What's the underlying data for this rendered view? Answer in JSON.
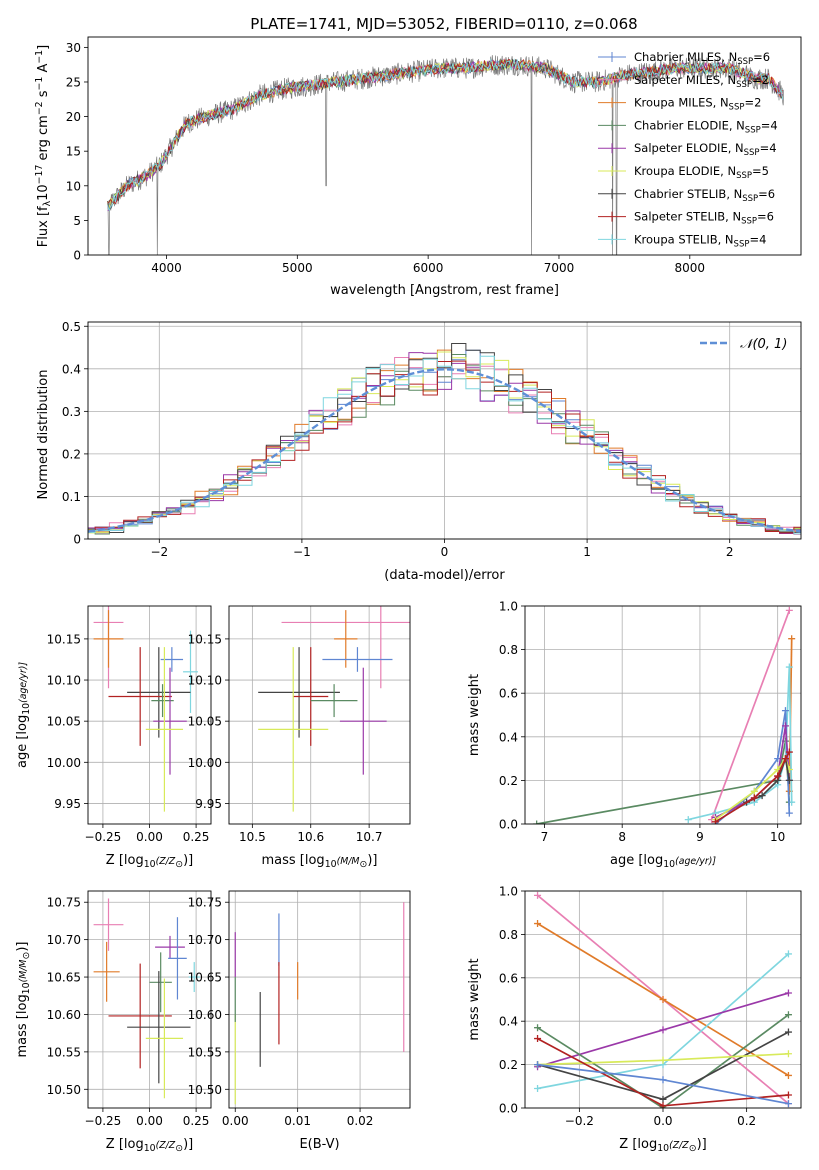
{
  "figure_title": "PLATE=1741, MJD=53052, FIBERID=0110, z=0.068",
  "colors": {
    "Chabrier MILES": "#5f86d2",
    "Salpeter MILES": "#e87fb3",
    "Kroupa MILES": "#e07b2a",
    "Chabrier ELODIE": "#5a8a62",
    "Salpeter ELODIE": "#9a38a8",
    "Kroupa ELODIE": "#d8ea5a",
    "Chabrier STELIB": "#444444",
    "Salpeter STELIB": "#b22222",
    "Kroupa STELIB": "#7fd6df",
    "gaussian": "#5f8fd6",
    "grid": "#b0b0b0"
  },
  "chart_data": [
    {
      "id": "spectrum",
      "type": "line",
      "title": "PLATE=1741, MJD=53052, FIBERID=0110, z=0.068",
      "xlabel": "wavelength [Angstrom, rest frame]",
      "ylabel_parts": [
        "Flux [f",
        "λ",
        "10",
        "−17",
        " erg cm",
        "−2",
        " s",
        "−1",
        " A",
        "−1",
        "]"
      ],
      "xlim": [
        3400,
        8850
      ],
      "ylim": [
        0,
        31.5
      ],
      "xticks": [
        4000,
        5000,
        6000,
        7000,
        8000
      ],
      "yticks": [
        0,
        5,
        10,
        15,
        20,
        25,
        30
      ],
      "grid": false,
      "legend_position": "right",
      "legend": [
        {
          "model": "Chabrier MILES",
          "nssp": "6"
        },
        {
          "model": "Salpeter MILES",
          "nssp": "2"
        },
        {
          "model": "Kroupa MILES",
          "nssp": "2"
        },
        {
          "model": "Chabrier ELODIE",
          "nssp": "4"
        },
        {
          "model": "Salpeter ELODIE",
          "nssp": "4"
        },
        {
          "model": "Kroupa ELODIE",
          "nssp": "5"
        },
        {
          "model": "Chabrier STELIB",
          "nssp": "6"
        },
        {
          "model": "Salpeter STELIB",
          "nssp": "6"
        },
        {
          "model": "Kroupa STELIB",
          "nssp": "4"
        }
      ],
      "continuum": {
        "x": [
          3550,
          3700,
          3850,
          3950,
          4050,
          4150,
          4300,
          4500,
          4700,
          4900,
          5100,
          5300,
          5500,
          5700,
          5900,
          6100,
          6300,
          6500,
          6700,
          6900,
          7100,
          7300,
          7500,
          7700,
          7900,
          8100,
          8300,
          8500,
          8600,
          8720
        ],
        "y": [
          7,
          10,
          11.5,
          13,
          16,
          19,
          20,
          21,
          23,
          24,
          24.5,
          25,
          25.5,
          26,
          26.5,
          27,
          27,
          27.5,
          27.5,
          27,
          25,
          25,
          26,
          26.5,
          27,
          27,
          27,
          25.5,
          25.5,
          23
        ]
      },
      "absorption_lines": [
        {
          "x": 3560,
          "y": 0
        },
        {
          "x": 3930,
          "y": 0
        },
        {
          "x": 5220,
          "y": 10
        },
        {
          "x": 6790,
          "y": 0
        },
        {
          "x": 7410,
          "y": 0
        },
        {
          "x": 7440,
          "y": 0
        }
      ]
    },
    {
      "id": "residual_hist",
      "type": "bar",
      "xlabel": "(data-model)/error",
      "ylabel": "Normed distribution",
      "xlim": [
        -2.5,
        2.5
      ],
      "ylim": [
        0,
        0.51
      ],
      "xticks": [
        -2,
        -1,
        0,
        1,
        2
      ],
      "yticks": [
        0,
        0.1,
        0.2,
        0.3,
        0.4,
        0.5
      ],
      "grid": true,
      "legend_position": "top-right",
      "legend_label": "𝒩(0, 1)",
      "bin_width": 0.1
    },
    {
      "id": "age_vs_Z",
      "type": "scatter",
      "xlabel_parts": [
        "Z [log",
        "10",
        "(Z/Z",
        "⊙",
        ")]"
      ],
      "ylabel_parts": [
        "age  [log",
        "10",
        "(age/yr)]"
      ],
      "xlim": [
        -0.33,
        0.33
      ],
      "ylim": [
        9.925,
        10.19
      ],
      "xticks": [
        -0.25,
        0,
        0.25
      ],
      "xtick_labels": [
        "−0.25",
        "0.00",
        "0.25"
      ],
      "yticks": [
        9.95,
        10.0,
        10.05,
        10.1,
        10.15
      ],
      "ytick_labels": [
        "9.95",
        "10.00",
        "10.05",
        "10.10",
        "10.15"
      ],
      "grid": true,
      "points": [
        {
          "model": "Salpeter MILES",
          "x": -0.22,
          "y": 10.17,
          "xerr": 0.08,
          "yerr": 0.08
        },
        {
          "model": "Kroupa MILES",
          "x": -0.22,
          "y": 10.15,
          "xerr": 0.08,
          "yerr": 0.035
        },
        {
          "model": "Chabrier MILES",
          "x": 0.12,
          "y": 10.125,
          "xerr": 0.06,
          "yerr": 0.015
        },
        {
          "model": "Kroupa STELIB",
          "x": 0.22,
          "y": 10.11,
          "xerr": 0.04,
          "yerr": 0.05
        },
        {
          "model": "Chabrier STELIB",
          "x": 0.05,
          "y": 10.085,
          "xerr": 0.17,
          "yerr": 0.055
        },
        {
          "model": "Salpeter STELIB",
          "x": -0.05,
          "y": 10.08,
          "xerr": 0.17,
          "yerr": 0.06
        },
        {
          "model": "Chabrier ELODIE",
          "x": 0.07,
          "y": 10.075,
          "xerr": 0.06,
          "yerr": 0.02
        },
        {
          "model": "Salpeter ELODIE",
          "x": 0.11,
          "y": 10.05,
          "xerr": 0.09,
          "yerr": 0.065
        },
        {
          "model": "Kroupa ELODIE",
          "x": 0.08,
          "y": 10.04,
          "xerr": 0.1,
          "yerr": 0.1
        }
      ]
    },
    {
      "id": "age_vs_mass",
      "type": "scatter",
      "xlabel_parts": [
        "mass [log",
        "10",
        "(M/M",
        "⊙",
        ")]"
      ],
      "ylabel": "",
      "xlim": [
        10.46,
        10.77
      ],
      "ylim": [
        9.925,
        10.19
      ],
      "xticks": [
        10.5,
        10.6,
        10.7
      ],
      "xtick_labels": [
        "10.5",
        "10.6",
        "10.7"
      ],
      "yticks": [
        9.95,
        10.0,
        10.05,
        10.1,
        10.15
      ],
      "ytick_labels": [
        "9.95",
        "10.00",
        "10.05",
        "10.10",
        "10.15"
      ],
      "grid": true,
      "points": [
        {
          "model": "Salpeter MILES",
          "x": 10.72,
          "y": 10.17,
          "xerr": 0.17,
          "yerr": 0.08
        },
        {
          "model": "Kroupa MILES",
          "x": 10.66,
          "y": 10.15,
          "xerr": 0.02,
          "yerr": 0.035
        },
        {
          "model": "Chabrier MILES",
          "x": 10.68,
          "y": 10.125,
          "xerr": 0.06,
          "yerr": 0.015
        },
        {
          "model": "Chabrier STELIB",
          "x": 10.58,
          "y": 10.085,
          "xerr": 0.07,
          "yerr": 0.055
        },
        {
          "model": "Salpeter STELIB",
          "x": 10.6,
          "y": 10.08,
          "xerr": 0.03,
          "yerr": 0.06
        },
        {
          "model": "Chabrier ELODIE",
          "x": 10.64,
          "y": 10.075,
          "xerr": 0.04,
          "yerr": 0.02
        },
        {
          "model": "Salpeter ELODIE",
          "x": 10.69,
          "y": 10.05,
          "xerr": 0.04,
          "yerr": 0.065
        },
        {
          "model": "Kroupa ELODIE",
          "x": 10.57,
          "y": 10.04,
          "xerr": 0.06,
          "yerr": 0.1
        }
      ]
    },
    {
      "id": "weight_vs_age",
      "type": "line",
      "xlabel_parts": [
        "age  [log",
        "10",
        "(age/yr)]"
      ],
      "ylabel": "mass weight",
      "xlim": [
        6.75,
        10.3
      ],
      "ylim": [
        0,
        1.0
      ],
      "xticks": [
        7,
        8,
        9,
        10
      ],
      "xtick_labels": [
        "7",
        "8",
        "9",
        "10"
      ],
      "yticks": [
        0,
        0.2,
        0.4,
        0.6,
        0.8,
        1.0
      ],
      "ytick_labels": [
        "0.0",
        "0.2",
        "0.4",
        "0.6",
        "0.8",
        "1.0"
      ],
      "grid": true,
      "series": [
        {
          "model": "Chabrier ELODIE",
          "x": [
            6.9,
            10.0,
            10.1,
            10.15
          ],
          "y": [
            0.0,
            0.2,
            0.38,
            0.1
          ]
        },
        {
          "model": "Salpeter MILES",
          "x": [
            9.15,
            10.15
          ],
          "y": [
            0.02,
            0.98
          ]
        },
        {
          "model": "Kroupa MILES",
          "x": [
            10.15,
            10.18
          ],
          "y": [
            0.15,
            0.85
          ]
        },
        {
          "model": "Kroupa STELIB",
          "x": [
            8.85,
            9.2,
            9.7,
            10.0,
            10.1,
            10.15,
            10.18
          ],
          "y": [
            0.02,
            0.05,
            0.1,
            0.18,
            0.3,
            0.72,
            0.1
          ]
        },
        {
          "model": "Chabrier MILES",
          "x": [
            9.2,
            9.7,
            10.0,
            10.1,
            10.15
          ],
          "y": [
            0.0,
            0.15,
            0.3,
            0.52,
            0.05
          ]
        },
        {
          "model": "Salpeter ELODIE",
          "x": [
            9.2,
            9.7,
            10.0,
            10.1,
            10.15
          ],
          "y": [
            0.03,
            0.12,
            0.22,
            0.45,
            0.2
          ]
        },
        {
          "model": "Kroupa ELODIE",
          "x": [
            9.2,
            9.7,
            10.0,
            10.1,
            10.15
          ],
          "y": [
            0.02,
            0.15,
            0.25,
            0.3,
            0.25
          ]
        },
        {
          "model": "Chabrier STELIB",
          "x": [
            9.6,
            9.8,
            10.0,
            10.1,
            10.15
          ],
          "y": [
            0.1,
            0.13,
            0.2,
            0.3,
            0.2
          ]
        },
        {
          "model": "Salpeter STELIB",
          "x": [
            9.2,
            9.7,
            10.0,
            10.1,
            10.15
          ],
          "y": [
            0.01,
            0.12,
            0.22,
            0.3,
            0.33
          ]
        }
      ]
    },
    {
      "id": "mass_vs_Z",
      "type": "scatter",
      "xlabel_parts": [
        "Z [log",
        "10",
        "(Z/Z",
        "⊙",
        ")]"
      ],
      "ylabel_parts": [
        "mass [log",
        "10",
        "(M/M",
        "⊙",
        ")]"
      ],
      "xlim": [
        -0.33,
        0.33
      ],
      "ylim": [
        10.475,
        10.765
      ],
      "xticks": [
        -0.25,
        0,
        0.25
      ],
      "xtick_labels": [
        "−0.25",
        "0.00",
        "0.25"
      ],
      "yticks": [
        10.5,
        10.55,
        10.6,
        10.65,
        10.7,
        10.75
      ],
      "ytick_labels": [
        "10.50",
        "10.55",
        "10.60",
        "10.65",
        "10.70",
        "10.75"
      ],
      "grid": true,
      "points": [
        {
          "model": "Salpeter MILES",
          "x": -0.22,
          "y": 10.72,
          "xerr": 0.08,
          "yerr": 0.035
        },
        {
          "model": "Salpeter ELODIE",
          "x": 0.11,
          "y": 10.69,
          "xerr": 0.08,
          "yerr": 0.015
        },
        {
          "model": "Chabrier MILES",
          "x": 0.15,
          "y": 10.675,
          "xerr": 0.05,
          "yerr": 0.055
        },
        {
          "model": "Kroupa MILES",
          "x": -0.23,
          "y": 10.657,
          "xerr": 0.07,
          "yerr": 0.04
        },
        {
          "model": "Kroupa STELIB",
          "x": 0.24,
          "y": 10.65,
          "xerr": 0.03,
          "yerr": 0.02
        },
        {
          "model": "Chabrier ELODIE",
          "x": 0.06,
          "y": 10.643,
          "xerr": 0.06,
          "yerr": 0.04
        },
        {
          "model": "Salpeter STELIB",
          "x": -0.05,
          "y": 10.598,
          "xerr": 0.17,
          "yerr": 0.07
        },
        {
          "model": "Chabrier STELIB",
          "x": 0.05,
          "y": 10.583,
          "xerr": 0.17,
          "yerr": 0.075
        },
        {
          "model": "Kroupa ELODIE",
          "x": 0.08,
          "y": 10.568,
          "xerr": 0.1,
          "yerr": 0.08
        }
      ]
    },
    {
      "id": "mass_vs_ebv",
      "type": "scatter",
      "xlabel": "E(B-V)",
      "ylabel": "",
      "xlim": [
        -0.001,
        0.028
      ],
      "ylim": [
        10.475,
        10.765
      ],
      "xticks": [
        0.0,
        0.01,
        0.02
      ],
      "xtick_labels": [
        "0.00",
        "0.01",
        "0.02"
      ],
      "yticks": [
        10.5,
        10.55,
        10.6,
        10.65,
        10.7,
        10.75
      ],
      "ytick_labels": [
        "10.50",
        "10.55",
        "10.60",
        "10.65",
        "10.70",
        "10.75"
      ],
      "grid": true,
      "points": [
        {
          "model": "Salpeter MILES",
          "x": 0.027,
          "y": 10.65,
          "xerr": 0,
          "yerr": 0.1
        },
        {
          "model": "Chabrier MILES",
          "x": 0.007,
          "y": 10.7,
          "xerr": 0,
          "yerr": 0.035
        },
        {
          "model": "Salpeter ELODIE",
          "x": 0.0,
          "y": 10.68,
          "xerr": 0,
          "yerr": 0.03
        },
        {
          "model": "Kroupa MILES",
          "x": 0.01,
          "y": 10.645,
          "xerr": 0,
          "yerr": 0.025
        },
        {
          "model": "Salpeter STELIB",
          "x": 0.007,
          "y": 10.615,
          "xerr": 0,
          "yerr": 0.055
        },
        {
          "model": "Chabrier STELIB",
          "x": 0.004,
          "y": 10.58,
          "xerr": 0,
          "yerr": 0.05
        },
        {
          "model": "Kroupa ELODIE",
          "x": 0.0,
          "y": 10.54,
          "xerr": 0,
          "yerr": 0.06
        },
        {
          "model": "Chabrier ELODIE",
          "x": 0.0,
          "y": 10.62,
          "xerr": 0,
          "yerr": 0.03
        }
      ]
    },
    {
      "id": "weight_vs_Z",
      "type": "line",
      "xlabel_parts": [
        "Z [log",
        "10",
        "(Z/Z",
        "⊙",
        ")]"
      ],
      "ylabel": "mass weight",
      "xlim": [
        -0.33,
        0.33
      ],
      "ylim": [
        0,
        1.0
      ],
      "xticks": [
        -0.2,
        0,
        0.2
      ],
      "xtick_labels": [
        "−0.2",
        "0.0",
        "0.2"
      ],
      "yticks": [
        0,
        0.2,
        0.4,
        0.6,
        0.8,
        1.0
      ],
      "ytick_labels": [
        "0.0",
        "0.2",
        "0.4",
        "0.6",
        "0.8",
        "1.0"
      ],
      "grid": true,
      "series": [
        {
          "model": "Salpeter MILES",
          "x": [
            -0.3,
            0.0,
            0.3
          ],
          "y": [
            0.98,
            0.5,
            0.02
          ]
        },
        {
          "model": "Kroupa MILES",
          "x": [
            -0.3,
            0.0,
            0.3
          ],
          "y": [
            0.85,
            0.5,
            0.15
          ]
        },
        {
          "model": "Kroupa STELIB",
          "x": [
            -0.3,
            0.0,
            0.3
          ],
          "y": [
            0.09,
            0.2,
            0.71
          ]
        },
        {
          "model": "Salpeter ELODIE",
          "x": [
            -0.3,
            0.0,
            0.3
          ],
          "y": [
            0.19,
            0.36,
            0.53
          ]
        },
        {
          "model": "Chabrier ELODIE",
          "x": [
            -0.3,
            0.0,
            0.3
          ],
          "y": [
            0.37,
            0.0,
            0.43
          ]
        },
        {
          "model": "Chabrier STELIB",
          "x": [
            -0.3,
            0.0,
            0.3
          ],
          "y": [
            0.2,
            0.04,
            0.35
          ]
        },
        {
          "model": "Kroupa ELODIE",
          "x": [
            -0.3,
            0.0,
            0.3
          ],
          "y": [
            0.2,
            0.22,
            0.25
          ]
        },
        {
          "model": "Salpeter STELIB",
          "x": [
            -0.3,
            0.0,
            0.3
          ],
          "y": [
            0.32,
            0.01,
            0.06
          ]
        },
        {
          "model": "Chabrier MILES",
          "x": [
            -0.3,
            0.0,
            0.3
          ],
          "y": [
            0.2,
            0.13,
            0.02
          ]
        }
      ]
    }
  ]
}
